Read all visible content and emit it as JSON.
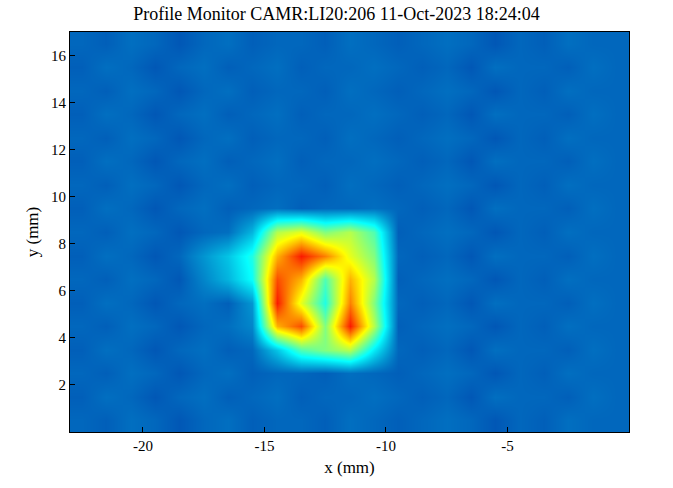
{
  "chart_data": {
    "type": "heatmap",
    "title": "Profile Monitor CAMR:LI20:206 11-Oct-2023 18:24:04",
    "x_label": "x (mm)",
    "y_label": "y (mm)",
    "x": [
      -22.5,
      -21.5,
      -20.5,
      -19.5,
      -18.5,
      -17.5,
      -16.5,
      -15.5,
      -14.5,
      -13.5,
      -12.5,
      -11.5,
      -10.5,
      -9.5,
      -8.5,
      -7.5,
      -6.5,
      -5.5,
      -4.5,
      -3.5,
      -2.5,
      -1.5,
      -0.5
    ],
    "y": [
      0.5,
      1.5,
      2.5,
      3.5,
      4.5,
      5.5,
      6.5,
      7.5,
      8.5,
      9.5,
      10.5,
      11.5,
      12.5,
      13.5,
      14.5,
      15.5,
      16.5
    ],
    "cells": [
      [
        18,
        17,
        19,
        18,
        16,
        18,
        19,
        17,
        18,
        18,
        17,
        19,
        18,
        17,
        18,
        19,
        18,
        16,
        18,
        17,
        19,
        18,
        18
      ],
      [
        17,
        19,
        18,
        16,
        18,
        19,
        17,
        18,
        19,
        17,
        18,
        18,
        19,
        18,
        17,
        18,
        16,
        19,
        18,
        18,
        17,
        19,
        18
      ],
      [
        18,
        17,
        19,
        18,
        16,
        18,
        19,
        17,
        18,
        18,
        17,
        19,
        18,
        17,
        18,
        19,
        18,
        16,
        18,
        17,
        19,
        18,
        18
      ],
      [
        17,
        19,
        18,
        16,
        18,
        19,
        17,
        18,
        30,
        45,
        50,
        55,
        35,
        18,
        17,
        18,
        16,
        19,
        18,
        18,
        17,
        19,
        18
      ],
      [
        18,
        17,
        19,
        18,
        16,
        18,
        19,
        22,
        70,
        80,
        50,
        85,
        55,
        17,
        18,
        19,
        18,
        16,
        18,
        17,
        19,
        18,
        18
      ],
      [
        17,
        19,
        18,
        16,
        18,
        19,
        17,
        24,
        85,
        60,
        40,
        75,
        50,
        18,
        17,
        18,
        16,
        19,
        18,
        18,
        17,
        19,
        18
      ],
      [
        18,
        17,
        19,
        18,
        16,
        22,
        28,
        38,
        80,
        70,
        45,
        70,
        55,
        17,
        18,
        19,
        18,
        16,
        18,
        17,
        19,
        18,
        18
      ],
      [
        17,
        19,
        18,
        16,
        18,
        24,
        30,
        40,
        70,
        85,
        75,
        60,
        50,
        18,
        17,
        18,
        16,
        19,
        18,
        18,
        17,
        19,
        18
      ],
      [
        18,
        17,
        19,
        18,
        16,
        18,
        19,
        28,
        55,
        60,
        50,
        55,
        45,
        17,
        18,
        19,
        18,
        16,
        18,
        17,
        19,
        18,
        18
      ],
      [
        17,
        19,
        18,
        16,
        18,
        19,
        17,
        18,
        19,
        17,
        18,
        18,
        19,
        18,
        17,
        18,
        16,
        19,
        18,
        18,
        17,
        19,
        18
      ],
      [
        18,
        17,
        19,
        18,
        16,
        18,
        19,
        17,
        18,
        18,
        17,
        19,
        18,
        17,
        18,
        19,
        18,
        16,
        18,
        17,
        19,
        18,
        18
      ],
      [
        17,
        19,
        18,
        16,
        18,
        19,
        17,
        18,
        19,
        17,
        18,
        18,
        19,
        18,
        17,
        18,
        16,
        19,
        18,
        18,
        17,
        19,
        18
      ],
      [
        18,
        17,
        19,
        18,
        16,
        18,
        19,
        17,
        18,
        18,
        17,
        19,
        18,
        17,
        18,
        19,
        18,
        16,
        18,
        17,
        19,
        18,
        18
      ],
      [
        17,
        19,
        18,
        16,
        18,
        19,
        17,
        18,
        19,
        17,
        18,
        18,
        19,
        18,
        17,
        18,
        16,
        19,
        18,
        18,
        17,
        19,
        18
      ],
      [
        18,
        17,
        19,
        18,
        16,
        18,
        19,
        17,
        18,
        18,
        17,
        19,
        18,
        17,
        18,
        19,
        18,
        16,
        18,
        17,
        19,
        18,
        18
      ],
      [
        17,
        19,
        18,
        16,
        18,
        19,
        17,
        18,
        19,
        17,
        18,
        18,
        19,
        18,
        17,
        18,
        16,
        19,
        18,
        18,
        17,
        19,
        18
      ],
      [
        18,
        17,
        19,
        18,
        16,
        18,
        19,
        17,
        18,
        18,
        17,
        19,
        18,
        17,
        18,
        19,
        18,
        16,
        18,
        17,
        19,
        18,
        18
      ]
    ],
    "zlim": [
      0,
      100
    ],
    "xlim": [
      -23,
      0
    ],
    "ylim": [
      0,
      17
    ],
    "xticks": [
      -20,
      -15,
      -10,
      -5
    ],
    "yticks": [
      2,
      4,
      6,
      8,
      10,
      12,
      14,
      16
    ],
    "grid": false
  }
}
